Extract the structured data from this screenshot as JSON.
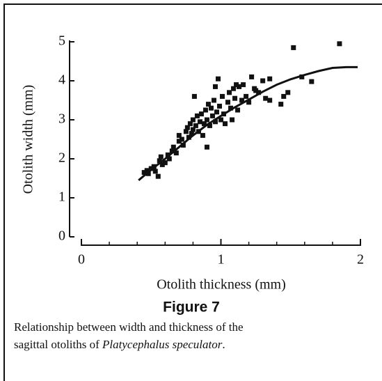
{
  "chart_data": {
    "type": "scatter",
    "xlabel": "Otolith thickness (mm)",
    "ylabel": "Otolith width (mm)",
    "xlim": [
      0,
      2
    ],
    "xticks": [
      0,
      1,
      2
    ],
    "xminor_ticks": [
      0.2,
      0.4,
      0.6,
      0.8,
      1.2,
      1.4,
      1.6,
      1.8
    ],
    "ylim": [
      0,
      5
    ],
    "yticks": [
      0,
      1,
      2,
      3,
      4,
      5
    ],
    "series": [
      {
        "type": "scatter",
        "color": "#111111",
        "x": [
          0.45,
          0.47,
          0.48,
          0.5,
          0.52,
          0.53,
          0.55,
          0.56,
          0.57,
          0.58,
          0.6,
          0.62,
          0.63,
          0.65,
          0.66,
          0.68,
          0.7,
          0.7,
          0.72,
          0.73,
          0.75,
          0.76,
          0.77,
          0.78,
          0.79,
          0.8,
          0.8,
          0.81,
          0.82,
          0.83,
          0.84,
          0.85,
          0.86,
          0.87,
          0.88,
          0.89,
          0.9,
          0.9,
          0.91,
          0.92,
          0.93,
          0.94,
          0.95,
          0.96,
          0.97,
          0.98,
          0.99,
          1.0,
          1.01,
          1.02,
          1.03,
          1.05,
          1.06,
          1.07,
          1.08,
          1.1,
          1.11,
          1.12,
          1.13,
          1.15,
          1.16,
          1.18,
          1.2,
          1.22,
          1.24,
          1.25,
          1.27,
          1.3,
          1.32,
          1.35,
          1.35,
          1.43,
          1.45,
          1.48,
          1.52,
          1.58,
          1.65,
          1.85,
          1.09,
          0.96
        ],
        "values": [
          1.65,
          1.7,
          1.62,
          1.75,
          1.8,
          1.68,
          1.55,
          1.95,
          2.05,
          1.85,
          1.9,
          2.1,
          2.0,
          2.2,
          2.3,
          2.15,
          2.45,
          2.6,
          2.5,
          2.35,
          2.7,
          2.8,
          2.55,
          2.9,
          2.65,
          3.0,
          2.75,
          3.6,
          2.85,
          3.1,
          2.7,
          2.95,
          3.15,
          2.6,
          2.9,
          3.25,
          2.3,
          3.0,
          3.4,
          2.85,
          3.3,
          3.1,
          3.5,
          2.95,
          3.2,
          4.05,
          3.35,
          3.0,
          3.6,
          3.15,
          2.9,
          3.45,
          3.7,
          3.3,
          3.0,
          3.55,
          3.9,
          3.25,
          3.85,
          3.5,
          3.9,
          3.6,
          3.45,
          4.1,
          3.8,
          3.75,
          3.7,
          4.0,
          3.55,
          4.05,
          3.5,
          3.4,
          3.6,
          3.7,
          4.85,
          4.1,
          3.98,
          4.95,
          3.8,
          3.85
        ]
      },
      {
        "type": "line",
        "color": "#111111",
        "x": [
          0.41,
          0.5,
          0.6,
          0.7,
          0.8,
          0.9,
          1.0,
          1.1,
          1.2,
          1.3,
          1.4,
          1.5,
          1.6,
          1.7,
          1.8,
          1.9,
          1.98
        ],
        "values": [
          1.45,
          1.72,
          2.0,
          2.3,
          2.6,
          2.87,
          3.1,
          3.32,
          3.52,
          3.72,
          3.9,
          4.04,
          4.15,
          4.25,
          4.33,
          4.35,
          4.35
        ]
      }
    ]
  },
  "figure": {
    "label": "Figure 7",
    "caption_lines": [
      "Relationship between width and thickness of the",
      "sagittal otoliths of"
    ],
    "species": "Platycephalus speculator",
    "caption_end": "."
  }
}
